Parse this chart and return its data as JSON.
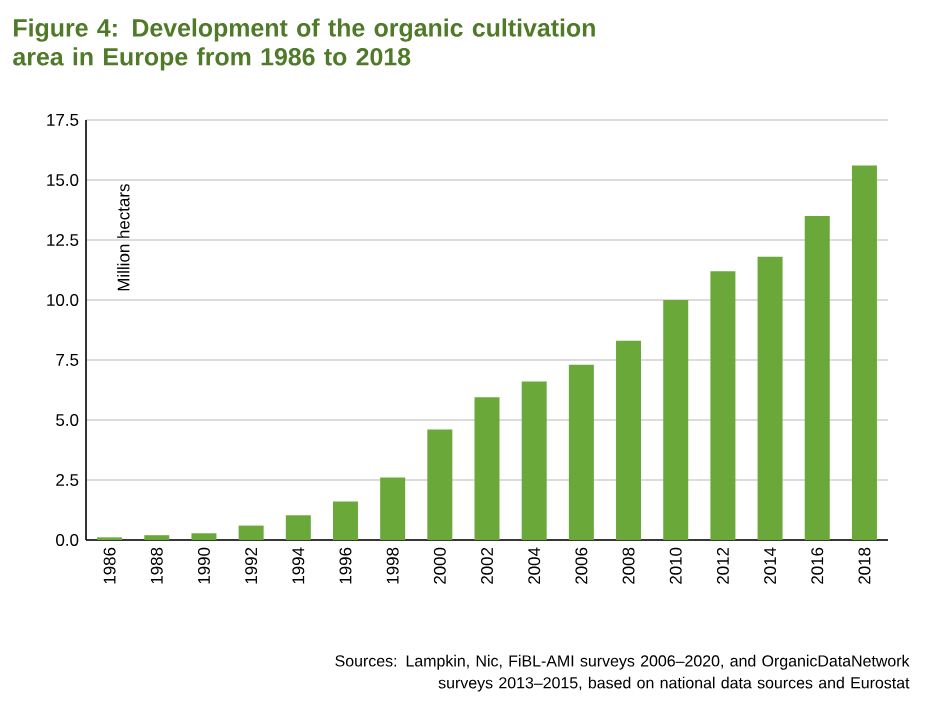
{
  "chart_data": {
    "type": "bar",
    "title": "Figure 4: Development of the organic cultivation area in Europe from 1986 to 2018",
    "ylabel": "Million hectars",
    "categories": [
      "1986",
      "1988",
      "1990",
      "1992",
      "1994",
      "1996",
      "1998",
      "2000",
      "2002",
      "2004",
      "2006",
      "2008",
      "2010",
      "2012",
      "2014",
      "2016",
      "2018"
    ],
    "values": [
      0.11,
      0.2,
      0.28,
      0.6,
      1.03,
      1.6,
      2.6,
      4.6,
      5.95,
      6.6,
      7.3,
      8.3,
      10.0,
      11.2,
      11.8,
      13.5,
      15.6
    ],
    "color": "#6aa83a",
    "ylim": [
      0,
      17.5
    ],
    "yticks": [
      {
        "value": 0,
        "label": "0.0"
      },
      {
        "value": 2.5,
        "label": "2.5"
      },
      {
        "value": 5,
        "label": "5.0"
      },
      {
        "value": 7.5,
        "label": "7.5"
      },
      {
        "value": 10,
        "label": "10.0"
      },
      {
        "value": 12.5,
        "label": "12.5"
      },
      {
        "value": 15,
        "label": "15.0"
      },
      {
        "value": 17.5,
        "label": "17.5"
      }
    ],
    "grid": "y",
    "annotations": [
      "Sources: Lampkin, Nic, FiBL-AMI surveys 2006–2020, and OrganicDataNetwork surveys 2013–2015, based on national data sources and Eurostat"
    ]
  }
}
